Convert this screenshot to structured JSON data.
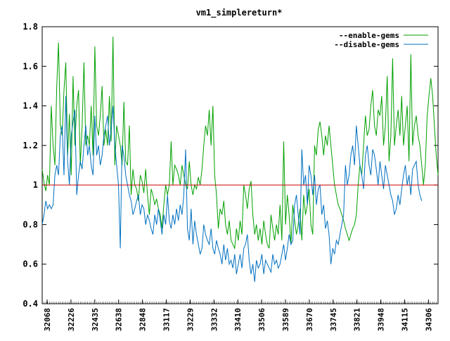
{
  "chart_data": {
    "type": "line",
    "title": "vm1_simplereturn*",
    "xlabel": "",
    "ylabel": "",
    "ylim": [
      0.4,
      1.8
    ],
    "yticks": [
      "0.4",
      "0.6",
      "0.8",
      "1",
      "1.2",
      "1.4",
      "1.6",
      "1.8"
    ],
    "grid": false,
    "legend": "top-right",
    "x_tick_labels": [
      "32068",
      "32226",
      "32435",
      "32638",
      "32848",
      "33117",
      "33229",
      "33332",
      "33410",
      "33506",
      "33589",
      "33670",
      "33745",
      "33821",
      "33948",
      "34115",
      "34306"
    ],
    "reference_line": {
      "y": 1.0,
      "color": "#cc0000"
    },
    "series": [
      {
        "name": "--enable-gems",
        "color": "#00a000",
        "values": [
          1.08,
          1.01,
          0.97,
          1.05,
          1.0,
          1.4,
          1.2,
          1.1,
          1.5,
          1.72,
          1.3,
          1.25,
          1.48,
          1.62,
          1.15,
          1.36,
          1.05,
          1.55,
          1.2,
          1.4,
          1.48,
          1.1,
          1.3,
          1.62,
          1.2,
          1.25,
          1.2,
          1.4,
          1.15,
          1.7,
          1.3,
          1.25,
          1.35,
          1.5,
          1.2,
          1.28,
          1.2,
          1.45,
          1.22,
          1.75,
          1.1,
          1.3,
          1.25,
          1.2,
          1.1,
          1.42,
          1.12,
          1.1,
          1.3,
          0.95,
          1.08,
          1.0,
          0.98,
          0.92,
          1.05,
          1.02,
          0.96,
          1.08,
          0.95,
          0.85,
          0.98,
          0.95,
          0.9,
          0.93,
          0.88,
          0.85,
          0.78,
          0.9,
          1.0,
          0.95,
          1.0,
          1.22,
          1.0,
          1.1,
          1.08,
          1.05,
          1.0,
          1.1,
          1.05,
          1.0,
          0.98,
          1.12,
          1.0,
          0.95,
          1.0,
          0.98,
          1.04,
          1.0,
          1.08,
          1.2,
          1.3,
          1.25,
          1.38,
          1.2,
          1.4,
          1.05,
          0.95,
          0.78,
          0.88,
          0.85,
          0.92,
          0.8,
          0.75,
          0.82,
          0.72,
          0.7,
          0.68,
          0.78,
          0.72,
          0.82,
          0.75,
          1.0,
          0.95,
          0.88,
          0.98,
          1.02,
          0.85,
          0.75,
          0.8,
          0.72,
          0.78,
          0.7,
          0.82,
          0.75,
          0.7,
          0.68,
          0.85,
          0.78,
          0.72,
          0.8,
          0.75,
          0.9,
          0.72,
          1.22,
          0.8,
          0.95,
          0.85,
          0.7,
          0.9,
          0.82,
          0.75,
          0.8,
          0.88,
          0.72,
          0.95,
          0.85,
          0.9,
          0.98,
          0.8,
          0.75,
          1.2,
          1.15,
          1.28,
          1.32,
          1.25,
          1.15,
          1.25,
          1.2,
          1.3,
          1.2,
          1.1,
          1.0,
          0.95,
          0.9,
          0.88,
          0.85,
          0.82,
          0.78,
          0.75,
          0.72,
          0.75,
          0.78,
          0.8,
          0.85,
          1.0,
          1.1,
          1.05,
          1.2,
          1.35,
          1.25,
          1.28,
          1.4,
          1.48,
          1.3,
          1.25,
          1.38,
          1.35,
          1.45,
          1.2,
          1.3,
          1.55,
          1.12,
          1.25,
          1.64,
          1.2,
          1.3,
          1.38,
          1.25,
          1.45,
          1.2,
          1.3,
          1.4,
          1.12,
          1.66,
          1.2,
          1.3,
          1.35,
          1.25,
          1.2,
          1.1,
          1.0,
          1.1,
          1.35,
          1.45,
          1.54,
          1.45,
          1.3,
          1.15,
          1.05
        ]
      },
      {
        "name": "--disable-gems",
        "color": "#0070c0",
        "values": [
          0.8,
          0.85,
          0.92,
          0.88,
          0.9,
          0.88,
          0.9,
          1.05,
          1.1,
          1.05,
          1.25,
          1.3,
          1.05,
          1.45,
          1.12,
          1.0,
          1.25,
          1.32,
          1.38,
          0.95,
          1.05,
          1.12,
          1.08,
          1.2,
          1.3,
          1.15,
          1.2,
          1.1,
          1.05,
          1.35,
          1.15,
          1.2,
          1.1,
          1.15,
          1.25,
          1.3,
          1.35,
          1.2,
          1.28,
          1.4,
          1.2,
          1.1,
          1.0,
          0.68,
          1.2,
          1.15,
          1.05,
          1.0,
          0.95,
          0.92,
          0.85,
          0.88,
          0.92,
          0.95,
          0.85,
          0.9,
          0.88,
          0.8,
          0.85,
          0.82,
          0.78,
          0.75,
          0.85,
          0.8,
          0.88,
          0.82,
          0.75,
          0.85,
          0.8,
          0.95,
          0.82,
          0.78,
          0.85,
          0.8,
          0.88,
          0.82,
          0.9,
          0.85,
          0.95,
          1.18,
          0.78,
          0.72,
          0.88,
          0.7,
          0.82,
          0.75,
          0.7,
          0.65,
          0.68,
          0.8,
          0.75,
          0.72,
          0.7,
          0.78,
          0.68,
          0.65,
          0.72,
          0.68,
          0.65,
          0.6,
          0.7,
          0.62,
          0.68,
          0.6,
          0.62,
          0.58,
          0.65,
          0.55,
          0.6,
          0.65,
          0.58,
          0.68,
          0.7,
          0.75,
          0.62,
          0.55,
          0.6,
          0.51,
          0.62,
          0.58,
          0.6,
          0.65,
          0.55,
          0.62,
          0.6,
          0.58,
          0.56,
          0.65,
          0.6,
          0.62,
          0.58,
          0.6,
          0.65,
          0.7,
          0.62,
          0.68,
          0.75,
          0.7,
          0.72,
          0.9,
          0.95,
          0.85,
          0.75,
          1.18,
          1.0,
          1.05,
          0.9,
          1.1,
          1.05,
          0.95,
          1.05,
          0.9,
          0.98,
          1.0,
          0.85,
          0.9,
          0.78,
          0.82,
          0.75,
          0.6,
          0.68,
          0.65,
          0.72,
          0.7,
          0.75,
          0.8,
          0.85,
          1.1,
          1.0,
          1.05,
          1.15,
          1.2,
          1.1,
          1.3,
          1.2,
          1.1,
          1.05,
          0.98,
          1.15,
          1.2,
          1.1,
          1.05,
          1.18,
          1.15,
          1.08,
          1.0,
          1.12,
          1.05,
          0.98,
          1.1,
          1.05,
          1.0,
          0.95,
          0.92,
          0.85,
          0.88,
          0.95,
          0.9,
          0.98,
          1.05,
          1.1,
          1.0,
          1.05,
          0.95,
          1.08,
          1.1,
          1.12,
          1.0,
          0.95,
          0.92
        ]
      }
    ]
  }
}
